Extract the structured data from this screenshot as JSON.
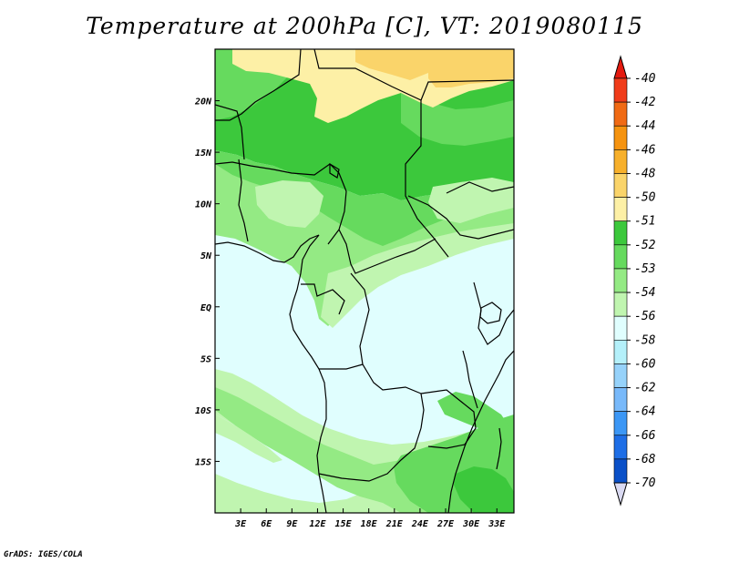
{
  "title": "Temperature at 200hPa [C], VT: 2019080115",
  "credit": "GrADS: IGES/COLA",
  "map": {
    "lon_range": [
      0,
      35
    ],
    "lat_range": [
      -20,
      25
    ],
    "lat_ticks": [
      {
        "value": 20,
        "label": "20N"
      },
      {
        "value": 15,
        "label": "15N"
      },
      {
        "value": 10,
        "label": "10N"
      },
      {
        "value": 5,
        "label": "5N"
      },
      {
        "value": 0,
        "label": "EQ"
      },
      {
        "value": -5,
        "label": "5S"
      },
      {
        "value": -10,
        "label": "10S"
      },
      {
        "value": -15,
        "label": "15S"
      }
    ],
    "lon_ticks": [
      {
        "value": 3,
        "label": "3E"
      },
      {
        "value": 6,
        "label": "6E"
      },
      {
        "value": 9,
        "label": "9E"
      },
      {
        "value": 12,
        "label": "12E"
      },
      {
        "value": 15,
        "label": "15E"
      },
      {
        "value": 18,
        "label": "18E"
      },
      {
        "value": 21,
        "label": "21E"
      },
      {
        "value": 24,
        "label": "24E"
      },
      {
        "value": 27,
        "label": "27E"
      },
      {
        "value": 30,
        "label": "30E"
      },
      {
        "value": 33,
        "label": "33E"
      }
    ]
  },
  "colorbar": {
    "top_color": "#e41a0f",
    "bottom_color": "#dadaf2",
    "levels": [
      {
        "label": "-40",
        "color": "#f03c1a"
      },
      {
        "label": "-42",
        "color": "#f06a14"
      },
      {
        "label": "-44",
        "color": "#f5930f"
      },
      {
        "label": "-46",
        "color": "#f7b02b"
      },
      {
        "label": "-48",
        "color": "#fad46a"
      },
      {
        "label": "-50",
        "color": "#fdf0a6"
      },
      {
        "label": "-51",
        "color": "#3cc83c"
      },
      {
        "label": "-52",
        "color": "#66da5e"
      },
      {
        "label": "-53",
        "color": "#94ea84"
      },
      {
        "label": "-54",
        "color": "#c0f5b0"
      },
      {
        "label": "-56",
        "color": "#e0fefe"
      },
      {
        "label": "-58",
        "color": "#b4f0fa"
      },
      {
        "label": "-60",
        "color": "#96d2fa"
      },
      {
        "label": "-62",
        "color": "#78b9fa"
      },
      {
        "label": "-64",
        "color": "#3c97f5"
      },
      {
        "label": "-66",
        "color": "#1e6ee6"
      },
      {
        "label": "-68",
        "color": "#0a50c8"
      },
      {
        "label": "-70",
        "color": "#0a1e78"
      }
    ]
  },
  "field_colors": {
    "yellow_light": "#fdf0a6",
    "yellow": "#fad46a",
    "green_dark": "#3cc83c",
    "green": "#66da5e",
    "green_light": "#94ea84",
    "green_pale": "#c0f5b0",
    "cyan_pale": "#e0fefe"
  }
}
